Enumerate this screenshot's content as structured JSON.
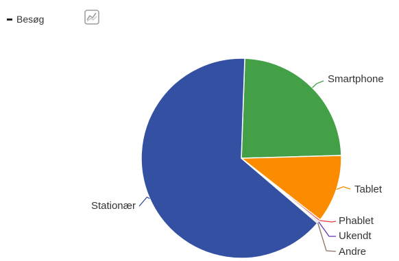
{
  "legend": {
    "label": "Besøg"
  },
  "toggle": {
    "icon": "line-chart-icon"
  },
  "chart_data": {
    "type": "pie",
    "series_name": "Besøg",
    "slices": [
      {
        "label": "Smartphone",
        "value": 24.0,
        "color": "#43a047"
      },
      {
        "label": "Tablet",
        "value": 11.0,
        "color": "#fb8c00"
      },
      {
        "label": "Phablet",
        "value": 0.3,
        "color": "#e53935"
      },
      {
        "label": "Ukendt",
        "value": 0.2,
        "color": "#5e35b1"
      },
      {
        "label": "Andre",
        "value": 0.2,
        "color": "#8d6e63"
      },
      {
        "label": "Stationær",
        "value": 64.3,
        "color": "#3450a3"
      }
    ]
  }
}
